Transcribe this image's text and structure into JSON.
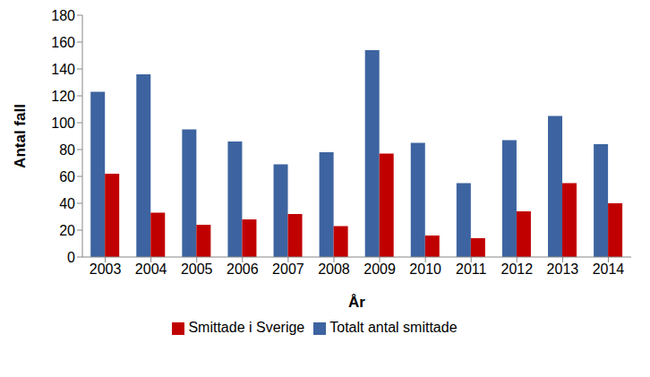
{
  "chart_data": {
    "type": "bar",
    "x_label": "År",
    "y_label": "Antal fall",
    "categories": [
      "2003",
      "2004",
      "2005",
      "2006",
      "2007",
      "2008",
      "2009",
      "2010",
      "2011",
      "2012",
      "2013",
      "2014"
    ],
    "series": [
      {
        "name": "Totalt antal smittade",
        "color": "#3D64A0",
        "values": [
          123,
          136,
          95,
          86,
          69,
          78,
          154,
          85,
          55,
          87,
          105,
          84
        ]
      },
      {
        "name": "Smittade i Sverige",
        "color": "#C00000",
        "values": [
          62,
          33,
          24,
          28,
          32,
          23,
          77,
          16,
          14,
          34,
          55,
          40
        ]
      }
    ],
    "ylim": [
      0,
      180
    ],
    "yticks": [
      0,
      20,
      40,
      60,
      80,
      100,
      120,
      140,
      160,
      180
    ],
    "grid": false,
    "legend": "bottom"
  }
}
